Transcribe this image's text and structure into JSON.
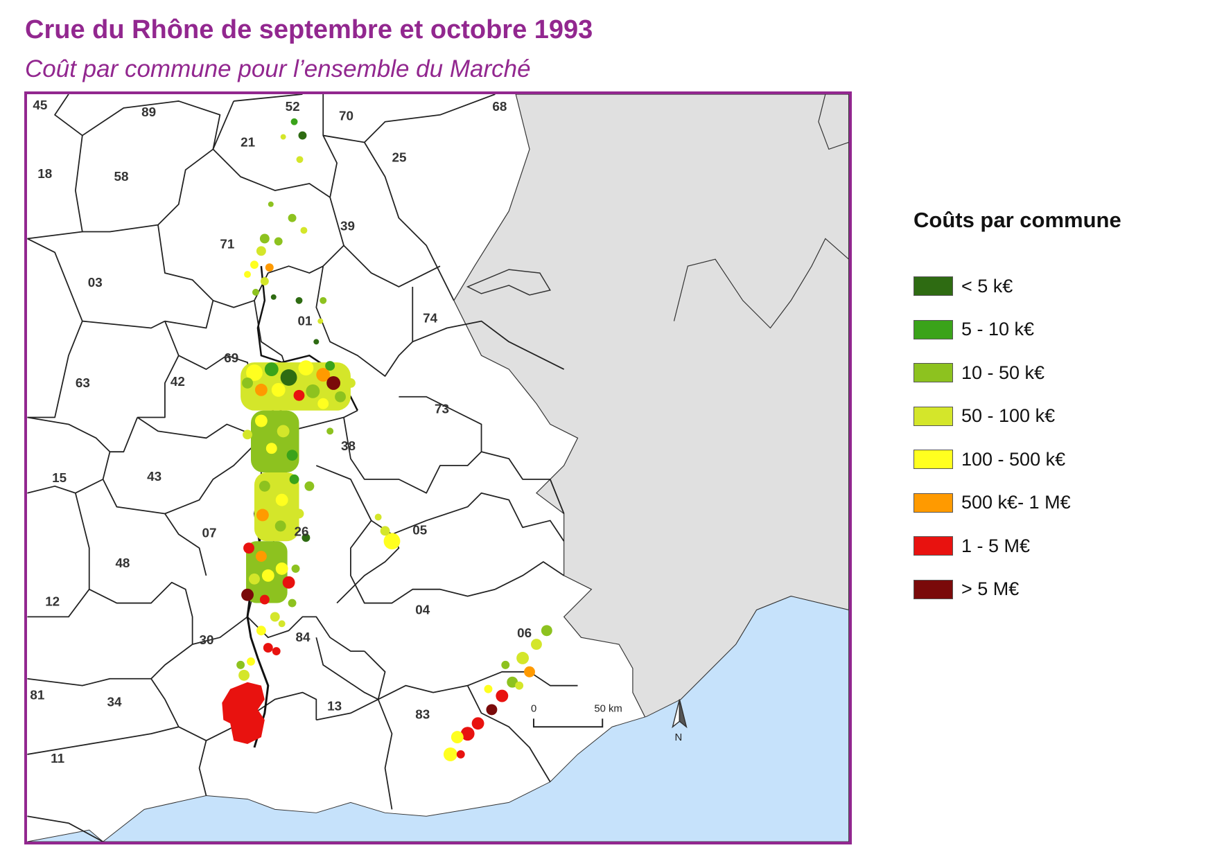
{
  "title": "Crue du Rhône de septembre et octobre 1993",
  "subtitle": "Coût par commune pour l’ensemble du Marché",
  "legend": {
    "title": "Coûts par commune",
    "items": [
      {
        "label": "< 5 k€",
        "color": "#2e6b12"
      },
      {
        "label": "5 - 10 k€",
        "color": "#3aa31a"
      },
      {
        "label": "10 - 50 k€",
        "color": "#8dc21f"
      },
      {
        "label": "50 - 100 k€",
        "color": "#d4e62a"
      },
      {
        "label": "100 - 500 k€",
        "color": "#ffff1f"
      },
      {
        "label": "500 k€- 1 M€",
        "color": "#ff9a00"
      },
      {
        "label": "1 - 5 M€",
        "color": "#e8120f"
      },
      {
        "label": "> 5 M€",
        "color": "#7a0a0a"
      }
    ]
  },
  "map": {
    "departments": [
      "45",
      "89",
      "52",
      "70",
      "68",
      "21",
      "25",
      "18",
      "58",
      "39",
      "71",
      "03",
      "01",
      "74",
      "69",
      "63",
      "42",
      "73",
      "38",
      "15",
      "43",
      "05",
      "07",
      "26",
      "48",
      "12",
      "04",
      "06",
      "30",
      "84",
      "81",
      "34",
      "13",
      "83",
      "11"
    ],
    "scale_bar": {
      "start_label": "0",
      "end_label": "50 km"
    },
    "north_arrow_label": "N"
  },
  "colors": {
    "frame": "#92278f",
    "sea": "#c6e2fb",
    "foreign": "#e0e0e0",
    "land": "#ffffff"
  }
}
